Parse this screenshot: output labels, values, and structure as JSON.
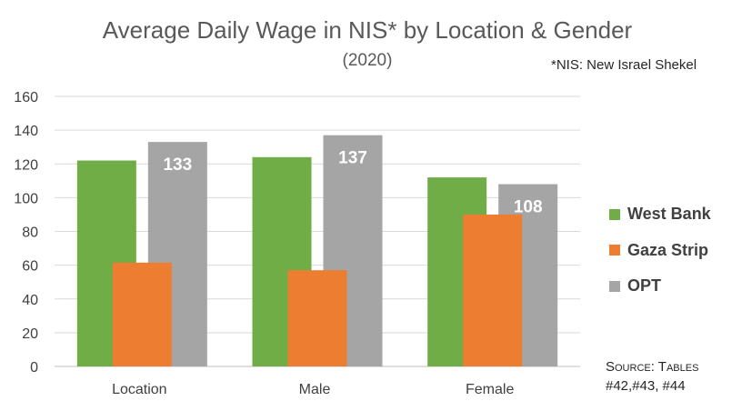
{
  "chart_data": {
    "type": "bar",
    "title": "Average Daily Wage in NIS* by Location & Gender",
    "subtitle": "(2020)",
    "note": "*NIS: New Israel Shekel",
    "categories": [
      "Location",
      "Male",
      "Female"
    ],
    "series": [
      {
        "name": "West Bank",
        "values": [
          122,
          124,
          112
        ],
        "color": "#70ad47"
      },
      {
        "name": "Gaza Strip",
        "values": [
          61.5,
          57,
          90
        ],
        "color": "#ed7d31"
      },
      {
        "name": "OPT",
        "values": [
          133,
          137,
          108
        ],
        "color": "#a5a5a5"
      }
    ],
    "data_labels": {
      "series": "OPT",
      "values": [
        "133",
        "137",
        "108"
      ]
    },
    "ylim": [
      0,
      160
    ],
    "yticks": [
      "0",
      "20",
      "40",
      "60",
      "80",
      "100",
      "120",
      "140",
      "160"
    ],
    "grid": true,
    "legend": "right",
    "source": [
      "Source: Tables",
      "#42,#43, #44"
    ]
  }
}
